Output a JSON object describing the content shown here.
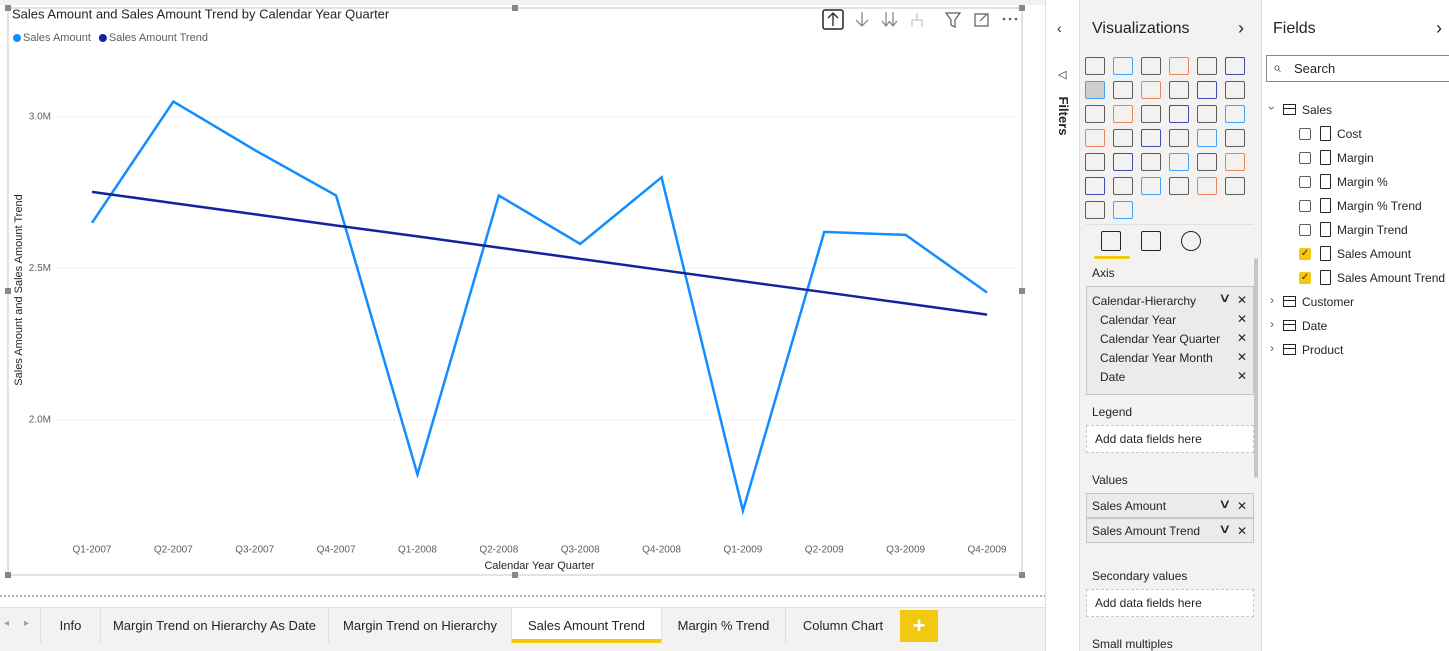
{
  "chart_data": {
    "type": "line",
    "title": "Sales Amount and Sales Amount Trend by Calendar Year Quarter",
    "categories": [
      "Q1-2007",
      "Q2-2007",
      "Q3-2007",
      "Q4-2007",
      "Q1-2008",
      "Q2-2008",
      "Q3-2008",
      "Q4-2008",
      "Q1-2009",
      "Q2-2009",
      "Q3-2009",
      "Q4-2009"
    ],
    "series": [
      {
        "name": "Sales Amount",
        "color": "#118DFF",
        "values": [
          2650000,
          3050000,
          2890000,
          2740000,
          1820000,
          2740000,
          2580000,
          2800000,
          1700000,
          2620000,
          2610000,
          2420000
        ]
      },
      {
        "name": "Sales Amount Trend",
        "color": "#12239E",
        "values": [
          2752000,
          2715000,
          2678000,
          2641000,
          2605000,
          2568000,
          2531000,
          2494000,
          2457000,
          2421000,
          2384000,
          2347000
        ]
      }
    ],
    "ylim": [
      1620000,
      3220000
    ],
    "yticks": [
      {
        "value": 2000000,
        "label": "2.0M"
      },
      {
        "value": 2500000,
        "label": "2.5M"
      },
      {
        "value": 3000000,
        "label": "3.0M"
      }
    ],
    "xlabel": "Calendar Year Quarter",
    "ylabel": "Sales Amount and Sales Amount Trend",
    "grid": true,
    "legend": "top-left"
  },
  "filters": {
    "label": "Filters"
  },
  "visualizations": {
    "title": "Visualizations",
    "wells": [
      {
        "label": "Axis",
        "fields": [
          "Calendar-Hierarchy",
          "Calendar Year",
          "Calendar Year Quarter",
          "Calendar Year Month",
          "Date"
        ]
      },
      {
        "label": "Legend",
        "placeholder": "Add data fields here"
      },
      {
        "label": "Values",
        "fields": [
          "Sales Amount",
          "Sales Amount Trend"
        ]
      },
      {
        "label": "Secondary values",
        "placeholder": "Add data fields here"
      },
      {
        "label": "Small multiples"
      }
    ]
  },
  "fields": {
    "title": "Fields",
    "search": "Search",
    "tables": [
      {
        "name": "Sales",
        "fields": [
          {
            "name": "Cost",
            "checked": false
          },
          {
            "name": "Margin",
            "checked": false
          },
          {
            "name": "Margin %",
            "checked": false
          },
          {
            "name": "Margin % Trend",
            "checked": false
          },
          {
            "name": "Margin Trend",
            "checked": false
          },
          {
            "name": "Sales Amount",
            "checked": true
          },
          {
            "name": "Sales Amount Trend",
            "checked": true
          }
        ]
      },
      {
        "name": "Customer"
      },
      {
        "name": "Date"
      },
      {
        "name": "Product"
      }
    ]
  },
  "tabs": [
    "Info",
    "Margin Trend on Hierarchy As Date",
    "Margin Trend on Hierarchy",
    "Sales Amount Trend",
    "Margin % Trend",
    "Column Chart"
  ],
  "active_tab": 3
}
